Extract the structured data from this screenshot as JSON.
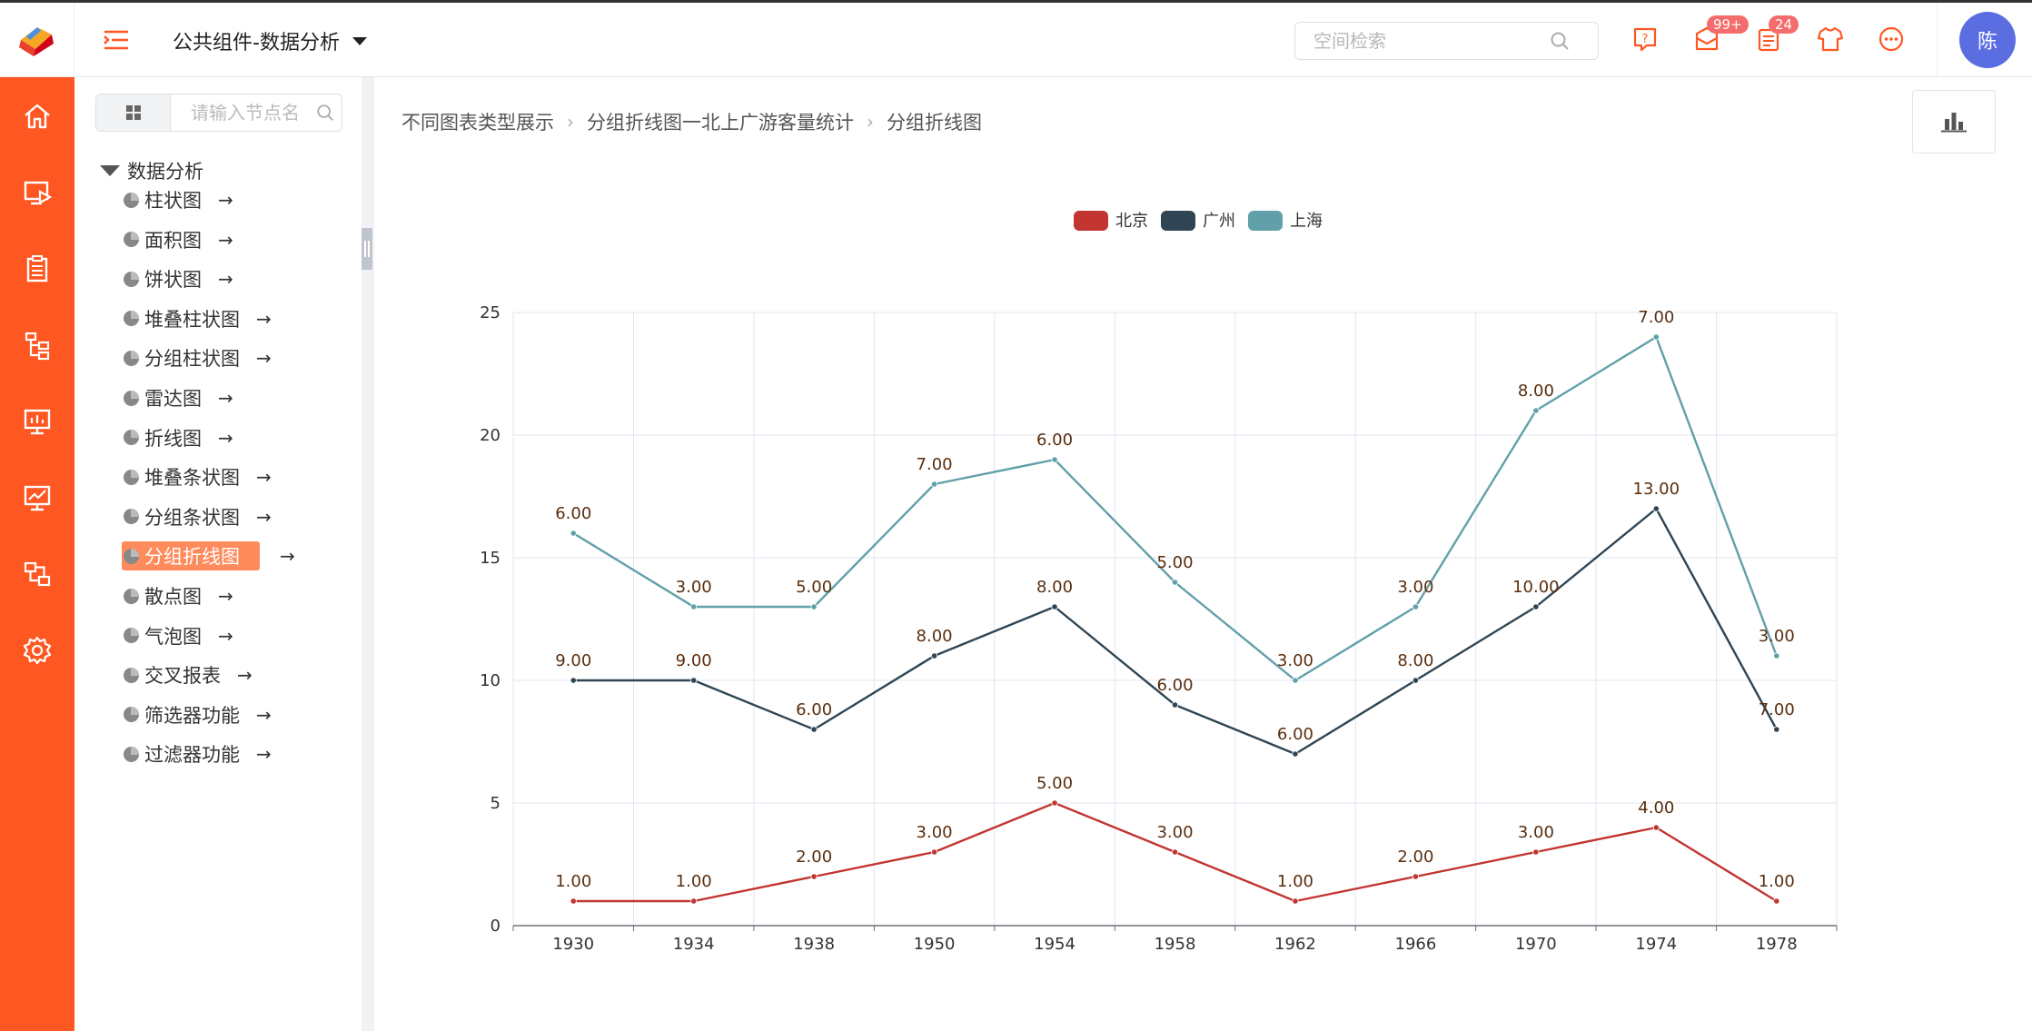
{
  "header": {
    "space_title": "公共组件-数据分析",
    "search_placeholder": "空间检索",
    "mail_badge": "99+",
    "task_badge": "24",
    "avatar_text": "陈"
  },
  "tree": {
    "search_placeholder": "请输入节点名",
    "root_label": "数据分析",
    "items": [
      {
        "label": "柱状图"
      },
      {
        "label": "面积图"
      },
      {
        "label": "饼状图"
      },
      {
        "label": "堆叠柱状图"
      },
      {
        "label": "分组柱状图"
      },
      {
        "label": "雷达图"
      },
      {
        "label": "折线图"
      },
      {
        "label": "堆叠条状图"
      },
      {
        "label": "分组条状图"
      },
      {
        "label": "分组折线图"
      },
      {
        "label": "散点图"
      },
      {
        "label": "气泡图"
      },
      {
        "label": "交叉报表"
      },
      {
        "label": "筛选器功能"
      },
      {
        "label": "过滤器功能"
      }
    ],
    "arrow": "→"
  },
  "breadcrumb": {
    "items": [
      "不同图表类型展示",
      "分组折线图一北上广游客量统计",
      "分组折线图"
    ],
    "separator": "›"
  },
  "chart_data": {
    "type": "line",
    "categories": [
      "1930",
      "1934",
      "1938",
      "1950",
      "1954",
      "1958",
      "1962",
      "1966",
      "1970",
      "1974",
      "1978"
    ],
    "stacked": true,
    "series": [
      {
        "name": "北京",
        "color": "#c23531",
        "values": [
          1,
          1,
          2,
          3,
          5,
          3,
          1,
          2,
          3,
          4,
          1
        ]
      },
      {
        "name": "广州",
        "color": "#2f4554",
        "values": [
          9,
          9,
          6,
          8,
          8,
          6,
          6,
          8,
          10,
          13,
          7
        ]
      },
      {
        "name": "上海",
        "color": "#61a0a8",
        "values": [
          6,
          3,
          5,
          7,
          6,
          5,
          3,
          3,
          8,
          7,
          3
        ]
      }
    ],
    "ylim": [
      0,
      25
    ],
    "yticks": [
      0,
      5,
      10,
      15,
      20,
      25
    ],
    "data_label_format": "0.00",
    "grid": true,
    "legend_position": "top-center"
  }
}
